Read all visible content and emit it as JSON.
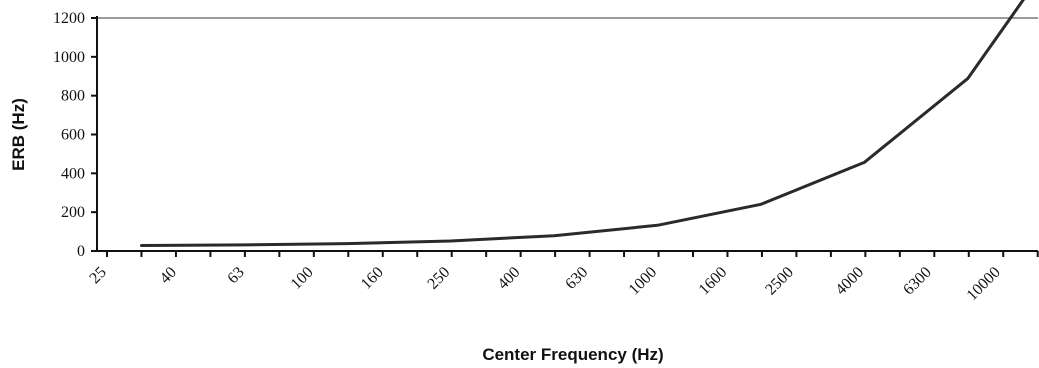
{
  "chart_data": {
    "type": "line",
    "title": "",
    "xlabel": "Center Frequency (Hz)",
    "ylabel": "ERB (Hz)",
    "xscale": "log",
    "x_tick_labels": [
      "25",
      "40",
      "63",
      "100",
      "160",
      "250",
      "400",
      "630",
      "1000",
      "1600",
      "2500",
      "4000",
      "6300",
      "10000"
    ],
    "x_ticks": [
      25,
      40,
      63,
      100,
      160,
      250,
      400,
      630,
      1000,
      1600,
      2500,
      4000,
      6300,
      10000
    ],
    "ylim": [
      0,
      1200
    ],
    "y_ticks": [
      0,
      200,
      400,
      600,
      800,
      1000,
      1200
    ],
    "grid": "horizontal line at 1200 only",
    "legend": "none",
    "series": [
      {
        "x": [
          31.5,
          63,
          125,
          250,
          500,
          1000,
          2000,
          4000,
          8000,
          12500
        ],
        "values": [
          28.1,
          31.5,
          38.2,
          51.7,
          78.6,
          132.6,
          240.5,
          456.4,
          888.1,
          1374.0
        ]
      }
    ],
    "colors": {
      "line": "#2a2a2a",
      "axis": "#111111",
      "gridline": "#9a9a9a"
    }
  }
}
